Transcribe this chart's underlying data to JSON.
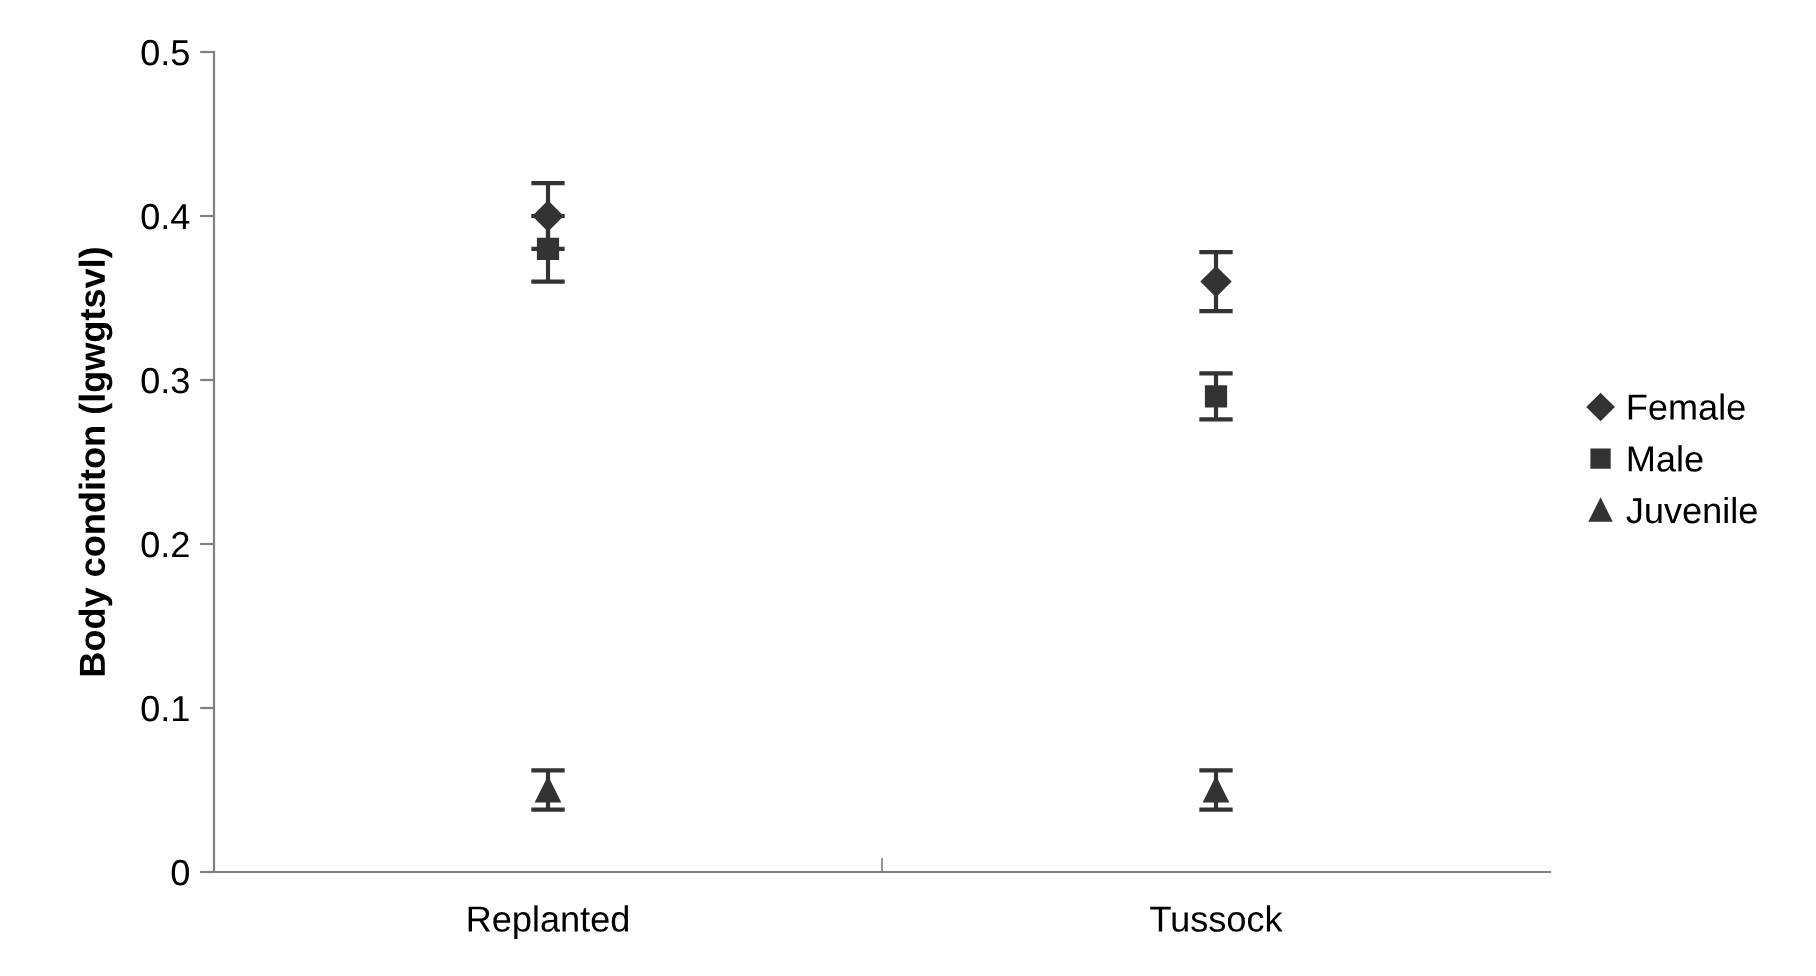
{
  "chart_data": {
    "type": "scatter",
    "ylabel": "Body conditon (lgwgtsvl)",
    "categories": [
      "Replanted",
      "Tussock"
    ],
    "ylim": [
      0,
      0.5
    ],
    "yticks": [
      {
        "value": 0,
        "label": "0"
      },
      0.1,
      0.2,
      0.3,
      0.4,
      0.5
    ],
    "grid": false,
    "legend": "right",
    "line_style": "none",
    "series": [
      {
        "name": "Female",
        "color": "#333333",
        "marker": "diamond",
        "values": [
          0.4,
          0.36
        ],
        "errors": [
          0.02,
          0.018
        ]
      },
      {
        "name": "Male",
        "color": "#333333",
        "marker": "square",
        "values": [
          0.38,
          0.29
        ],
        "errors": [
          0.02,
          0.014
        ]
      },
      {
        "name": "Juvenile",
        "color": "#333333",
        "marker": "triangle",
        "values": [
          0.05,
          0.05
        ],
        "errors": [
          0.012,
          0.012
        ]
      }
    ]
  }
}
